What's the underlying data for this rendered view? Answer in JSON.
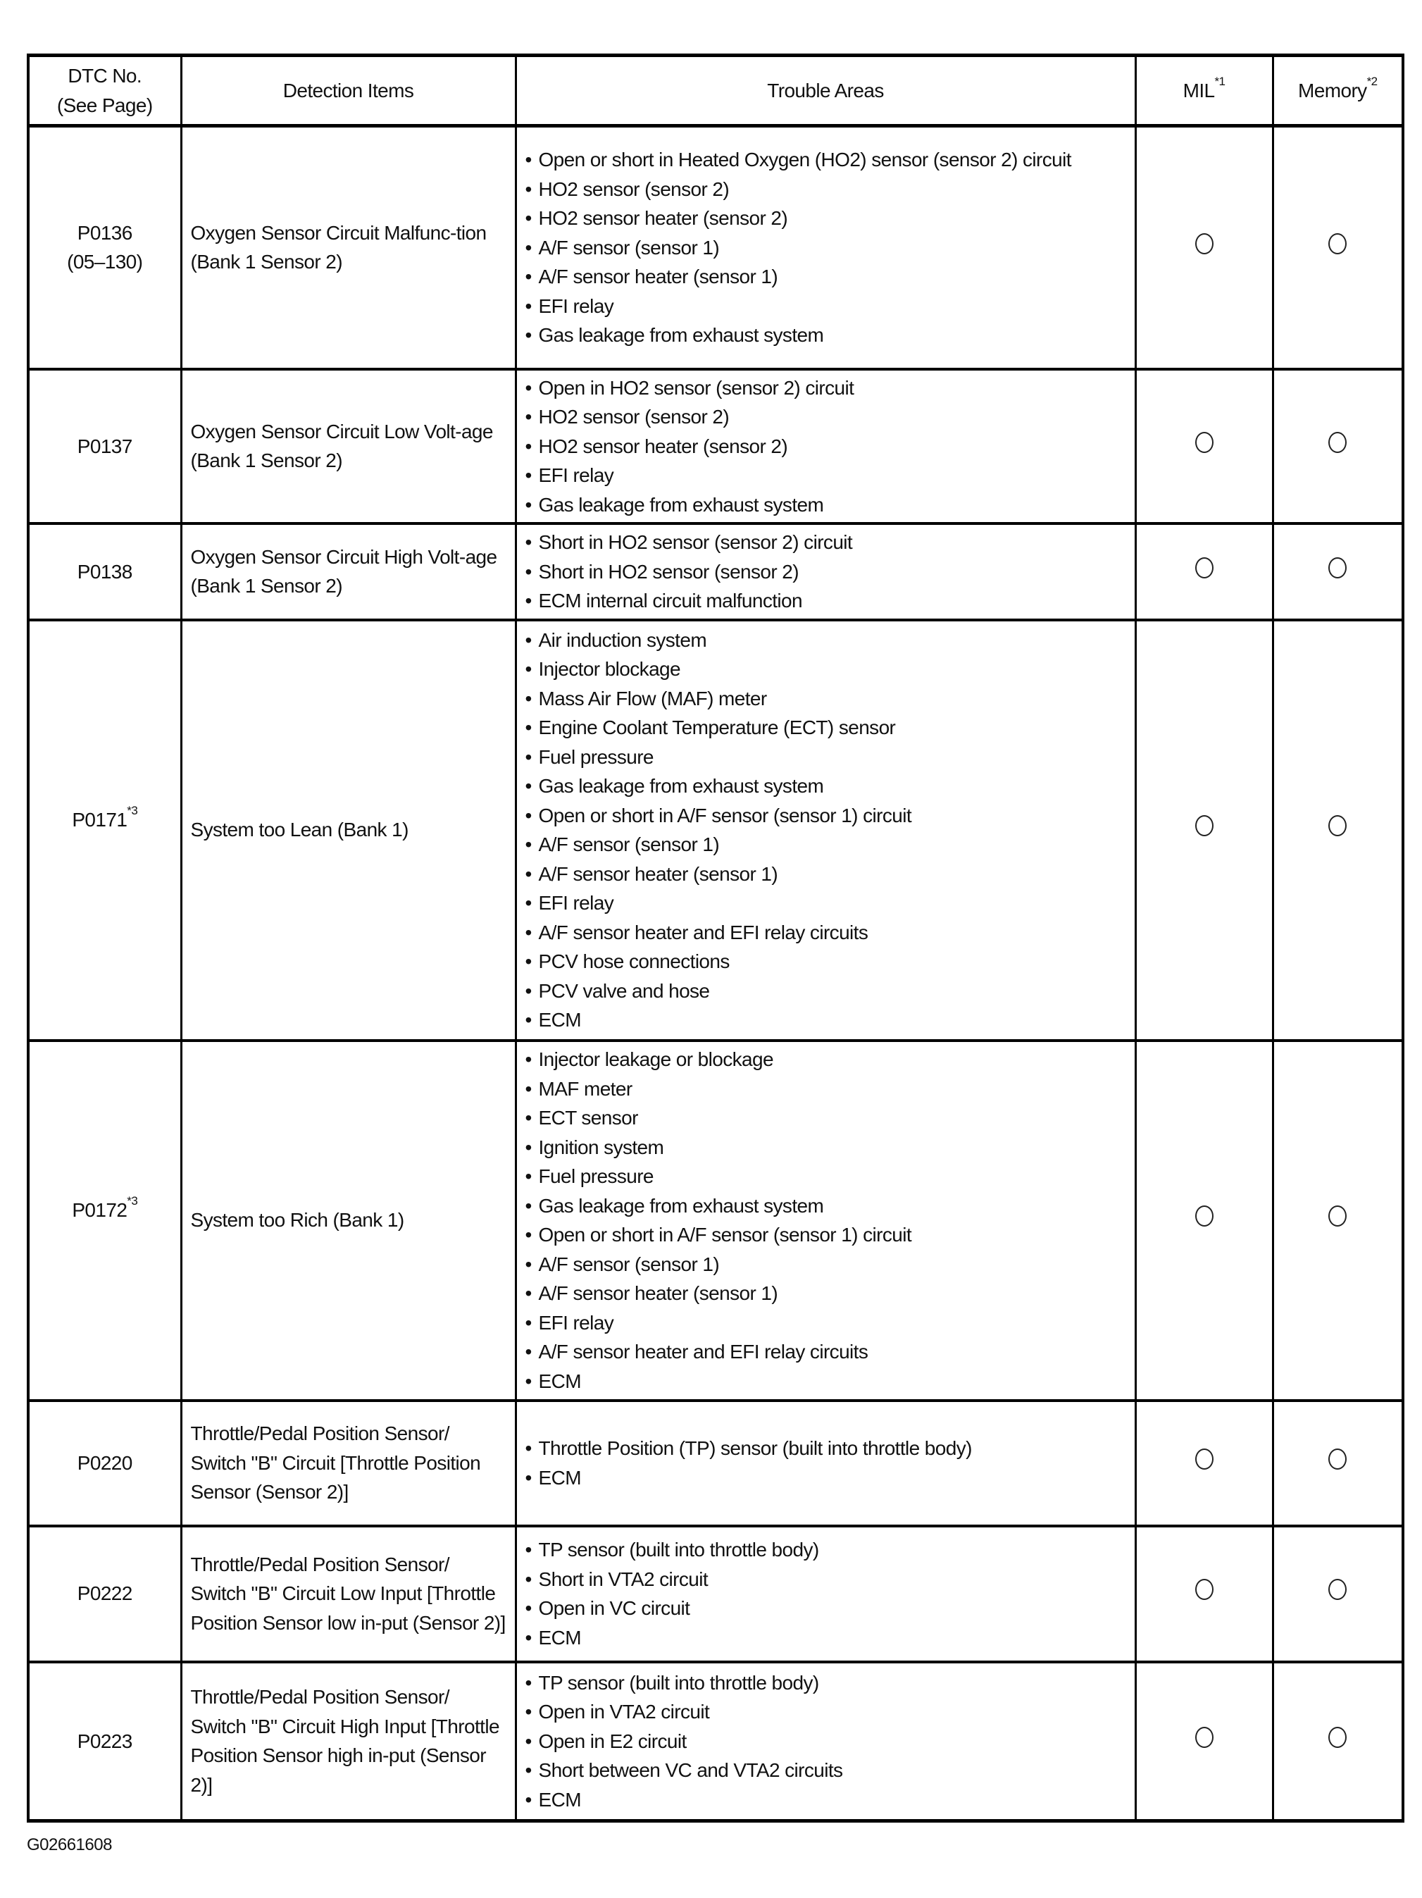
{
  "header": {
    "dtc_line1": "DTC No.",
    "dtc_line2": "(See Page)",
    "detection": "Detection Items",
    "trouble": "Trouble Areas",
    "mil": "MIL",
    "mil_sup": "*1",
    "memory": "Memory",
    "memory_sup": "*2"
  },
  "rows": [
    {
      "dtc": "P0136",
      "dtc_sup": "",
      "page": "(05–130)",
      "detection": "Oxygen Sensor Circuit Malfunc-tion (Bank 1 Sensor 2)",
      "trouble": [
        "Open or short in Heated Oxygen (HO2) sensor (sensor 2) circuit",
        "HO2 sensor (sensor 2)",
        "HO2 sensor heater (sensor 2)",
        "A/F sensor (sensor 1)",
        "A/F sensor heater (sensor 1)",
        "EFI relay",
        "Gas leakage from exhaust system"
      ],
      "mil": true,
      "memory": true
    },
    {
      "dtc": "P0137",
      "dtc_sup": "",
      "page": "",
      "detection": "Oxygen Sensor Circuit Low Volt-age (Bank 1 Sensor 2)",
      "trouble": [
        "Open in HO2 sensor (sensor 2) circuit",
        "HO2 sensor (sensor 2)",
        "HO2 sensor heater (sensor 2)",
        "EFI relay",
        "Gas leakage from exhaust system"
      ],
      "mil": true,
      "memory": true
    },
    {
      "dtc": "P0138",
      "dtc_sup": "",
      "page": "",
      "detection": "Oxygen Sensor Circuit High Volt-age (Bank 1 Sensor 2)",
      "trouble": [
        "Short in HO2 sensor (sensor 2) circuit",
        "Short in HO2 sensor (sensor 2)",
        "ECM internal circuit malfunction"
      ],
      "mil": true,
      "memory": true
    },
    {
      "dtc": "P0171",
      "dtc_sup": "*3",
      "page": "",
      "detection": "System too Lean (Bank 1)",
      "trouble": [
        "Air induction system",
        "Injector blockage",
        "Mass Air Flow (MAF) meter",
        "Engine Coolant Temperature (ECT) sensor",
        "Fuel pressure",
        "Gas leakage from exhaust system",
        "Open or short in A/F sensor (sensor 1) circuit",
        "A/F sensor (sensor 1)",
        "A/F sensor heater (sensor 1)",
        "EFI relay",
        "A/F sensor heater and EFI relay circuits",
        "PCV hose connections",
        "PCV valve and hose",
        "ECM"
      ],
      "mil": true,
      "memory": true
    },
    {
      "dtc": "P0172",
      "dtc_sup": "*3",
      "page": "",
      "detection": "System too Rich (Bank 1)",
      "trouble": [
        "Injector leakage or blockage",
        "MAF meter",
        "ECT sensor",
        "Ignition system",
        "Fuel pressure",
        "Gas leakage from exhaust system",
        "Open or short in A/F sensor (sensor 1) circuit",
        "A/F sensor (sensor 1)",
        "A/F sensor heater (sensor 1)",
        "EFI relay",
        "A/F sensor heater and EFI relay circuits",
        "ECM"
      ],
      "mil": true,
      "memory": true
    },
    {
      "dtc": "P0220",
      "dtc_sup": "",
      "page": "",
      "detection": "Throttle/Pedal Position Sensor/ Switch \"B\" Circuit [Throttle Position Sensor (Sensor 2)]",
      "trouble": [
        "Throttle Position (TP) sensor (built into throttle body)",
        "ECM"
      ],
      "mil": true,
      "memory": true
    },
    {
      "dtc": "P0222",
      "dtc_sup": "",
      "page": "",
      "detection": "Throttle/Pedal Position Sensor/ Switch \"B\" Circuit Low Input [Throttle Position Sensor low in-put (Sensor 2)]",
      "trouble": [
        "TP sensor (built into throttle body)",
        "Short in VTA2 circuit",
        "Open in VC circuit",
        "ECM"
      ],
      "mil": true,
      "memory": true
    },
    {
      "dtc": "P0223",
      "dtc_sup": "",
      "page": "",
      "detection": "Throttle/Pedal Position Sensor/ Switch \"B\" Circuit High Input [Throttle Position Sensor high in-put (Sensor 2)]",
      "trouble": [
        "TP sensor (built into throttle body)",
        "Open in VTA2 circuit",
        "Open in E2 circuit",
        "Short between VC and VTA2 circuits",
        "ECM"
      ],
      "mil": true,
      "memory": true
    }
  ],
  "figure_id": "G02661608"
}
